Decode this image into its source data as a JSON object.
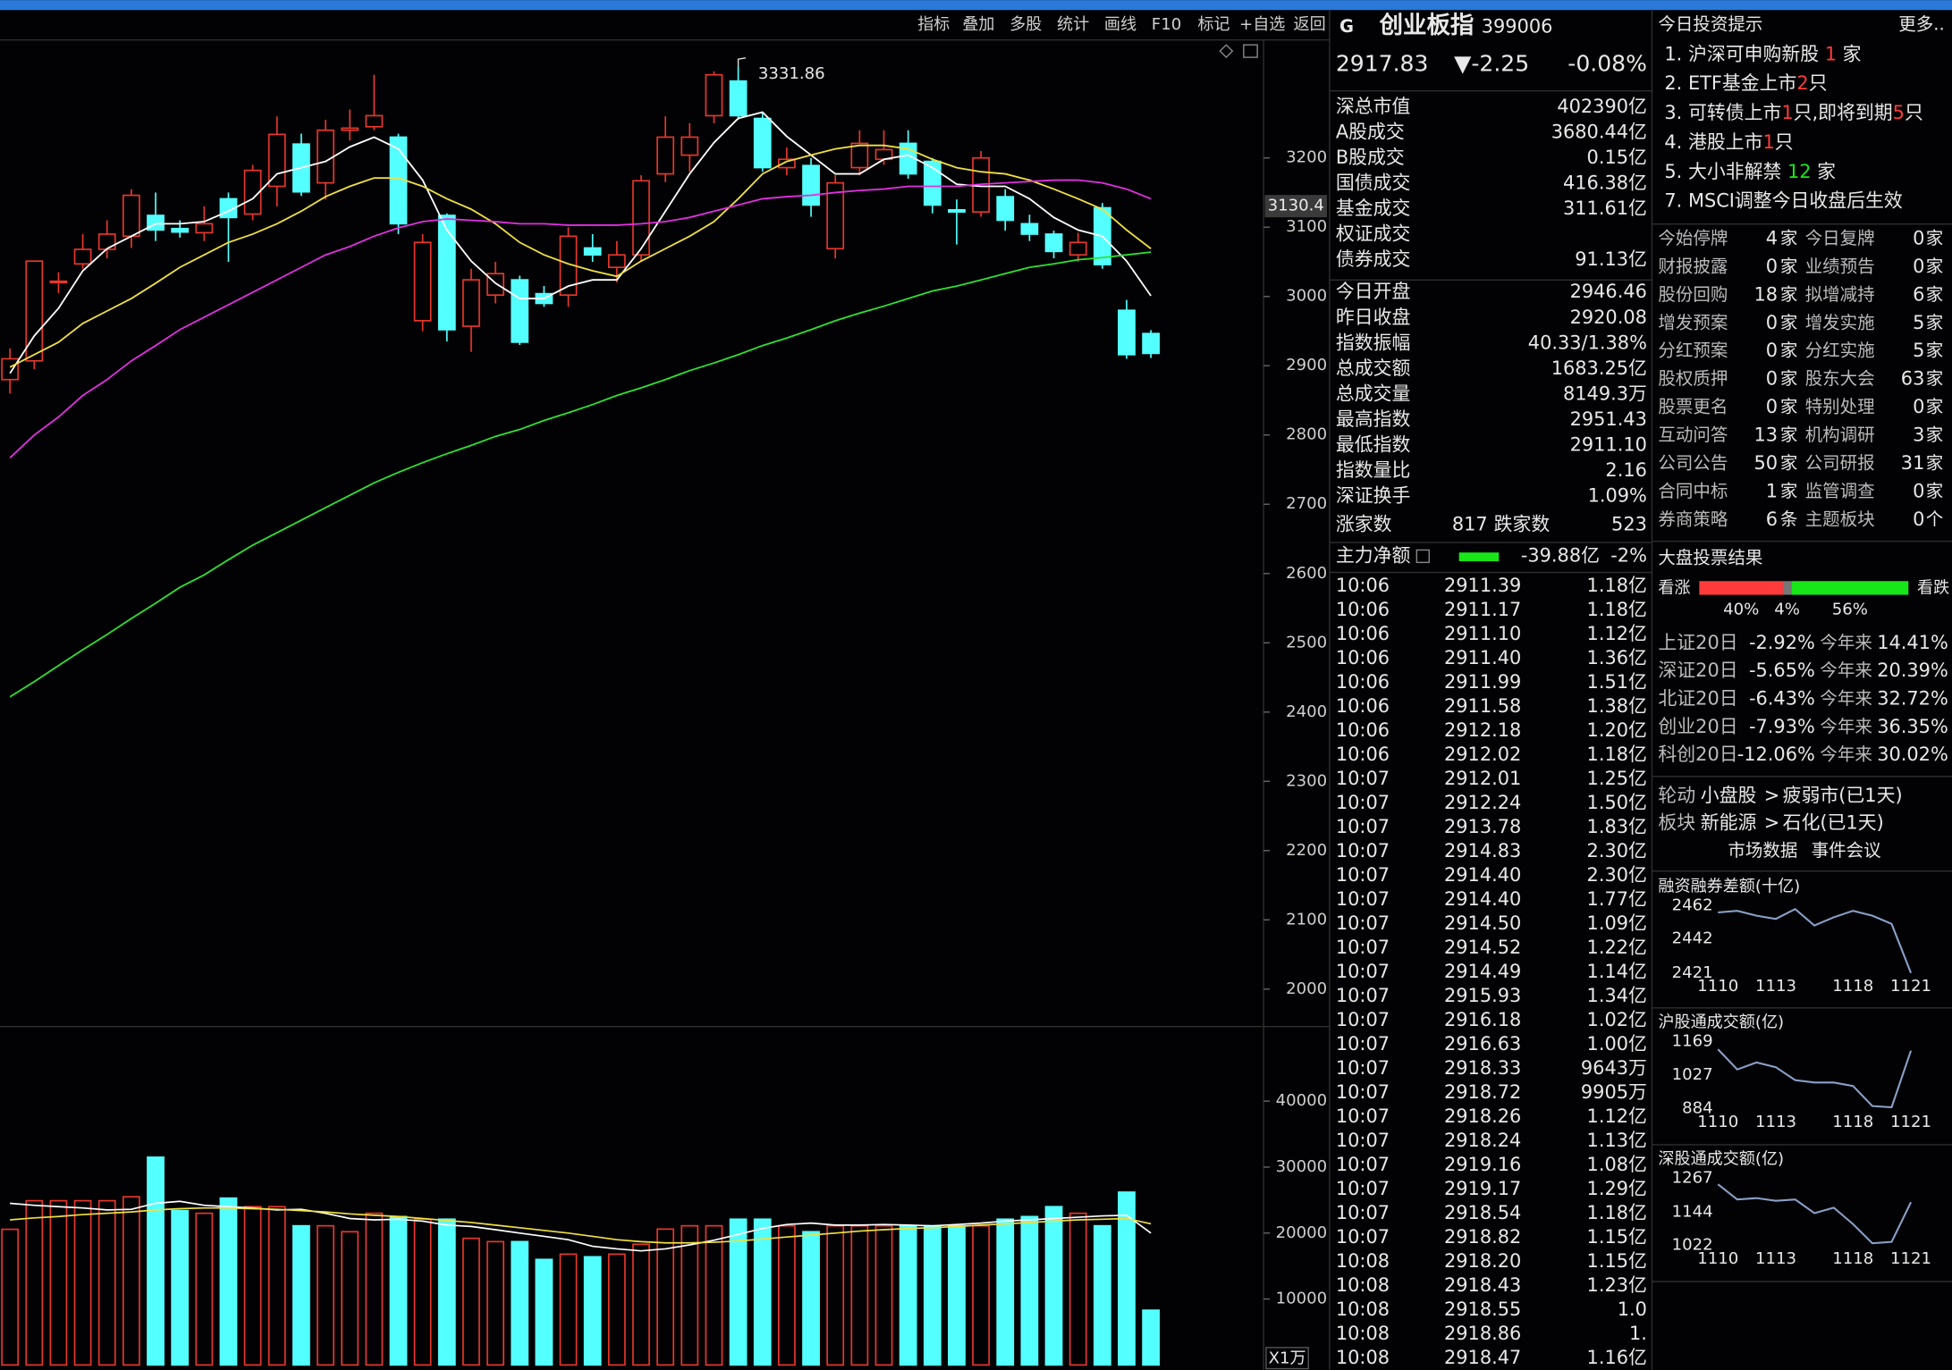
{
  "toolbar": [
    "指标",
    "叠加",
    "多股",
    "统计",
    "画线",
    "F10",
    "标记",
    "+自选",
    "返回"
  ],
  "chart_data": [
    {
      "type": "candlestick",
      "up_color": "#e8372b",
      "down_color": "#54ffff",
      "ylim": [
        1946,
        3374
      ],
      "yticks": [
        2000,
        2100,
        2200,
        2300,
        2400,
        2500,
        2600,
        2700,
        2800,
        2900,
        3000,
        3100,
        3200
      ],
      "marker": 3130.4,
      "open": [
        2880,
        2907,
        3020,
        3047,
        3068,
        3087,
        3117,
        3098,
        3092,
        3141,
        3119,
        3159,
        3220,
        3164,
        3240,
        3245,
        3230,
        2965,
        3117,
        2957,
        3002,
        3024,
        3004,
        3002,
        3070,
        3042,
        3060,
        3177,
        3204,
        3261,
        3311,
        3257,
        3186,
        3189,
        3069,
        3186,
        3198,
        3221,
        3195,
        3125,
        3122,
        3144,
        3105,
        3090,
        3060,
        3128,
        2980,
        2946.46
      ],
      "high": [
        2925,
        3051,
        3035,
        3090,
        3110,
        3155,
        3150,
        3110,
        3130,
        3150,
        3190,
        3260,
        3235,
        3255,
        3270,
        3320,
        3235,
        3090,
        3120,
        3040,
        3050,
        3030,
        3015,
        3100,
        3090,
        3080,
        3175,
        3260,
        3250,
        3325,
        3331.86,
        3265,
        3215,
        3200,
        3175,
        3240,
        3240,
        3240,
        3200,
        3140,
        3210,
        3155,
        3118,
        3095,
        3092,
        3135,
        2995,
        2951.43
      ],
      "low": [
        2860,
        2895,
        3005,
        3040,
        3055,
        3070,
        3080,
        3085,
        3080,
        3050,
        3110,
        3130,
        3145,
        3140,
        3225,
        3240,
        3090,
        2950,
        2935,
        2920,
        2990,
        2930,
        2985,
        2985,
        3050,
        3020,
        3050,
        3165,
        3180,
        3250,
        3255,
        3180,
        3175,
        3115,
        3055,
        3175,
        3190,
        3170,
        3120,
        3075,
        3115,
        3095,
        3080,
        3055,
        3050,
        3040,
        2910,
        2911.1
      ],
      "close": [
        2910,
        3051,
        3022,
        3068,
        3090,
        3146,
        3096,
        3093,
        3105,
        3114,
        3182,
        3234,
        3151,
        3240,
        3243,
        3261,
        3105,
        3078,
        2952,
        3024,
        3033,
        2934,
        2990,
        3087,
        3060,
        3060,
        3167,
        3230,
        3230,
        3320,
        3261,
        3186,
        3198,
        3132,
        3164,
        3221,
        3212,
        3177,
        3132,
        3122,
        3200,
        3110,
        3090,
        3065,
        3078,
        3046,
        2916,
        2917.83
      ],
      "lines": [
        {
          "color": "#ffffff",
          "values": [
            2889,
            2943,
            2983,
            3037,
            3069,
            3087,
            3105,
            3105,
            3108,
            3123,
            3141,
            3177,
            3186,
            3195,
            3216,
            3230,
            3213,
            3168,
            3096,
            3051,
            3019,
            2997,
            2997,
            3015,
            3024,
            3024,
            3069,
            3123,
            3177,
            3222,
            3257,
            3266,
            3231,
            3204,
            3177,
            3177,
            3198,
            3204,
            3186,
            3162,
            3159,
            3159,
            3141,
            3114,
            3096,
            3087,
            3051,
            3001
          ]
        },
        {
          "color": "#f0e040",
          "values": [
            2898,
            2916,
            2934,
            2961,
            2979,
            2997,
            3019,
            3042,
            3060,
            3078,
            3090,
            3105,
            3123,
            3144,
            3159,
            3171,
            3171,
            3159,
            3141,
            3126,
            3105,
            3078,
            3060,
            3047,
            3037,
            3029,
            3051,
            3069,
            3087,
            3108,
            3141,
            3177,
            3195,
            3204,
            3213,
            3218,
            3218,
            3213,
            3198,
            3186,
            3180,
            3177,
            3168,
            3155,
            3141,
            3126,
            3096,
            3069
          ]
        },
        {
          "color": "#e030e0",
          "values": [
            2767,
            2800,
            2826,
            2857,
            2880,
            2907,
            2929,
            2952,
            2970,
            2988,
            3006,
            3024,
            3042,
            3060,
            3072,
            3087,
            3099,
            3108,
            3112,
            3110,
            3108,
            3105,
            3105,
            3103,
            3103,
            3103,
            3105,
            3108,
            3114,
            3123,
            3132,
            3141,
            3144,
            3146,
            3150,
            3153,
            3155,
            3159,
            3159,
            3159,
            3162,
            3164,
            3166,
            3168,
            3168,
            3164,
            3155,
            3141
          ]
        },
        {
          "color": "#30e030",
          "values": [
            2422,
            2444,
            2467,
            2490,
            2512,
            2535,
            2557,
            2580,
            2598,
            2620,
            2641,
            2659,
            2677,
            2695,
            2713,
            2731,
            2746,
            2760,
            2773,
            2785,
            2798,
            2808,
            2821,
            2832,
            2844,
            2857,
            2868,
            2880,
            2893,
            2904,
            2916,
            2929,
            2940,
            2952,
            2965,
            2976,
            2986,
            2997,
            3008,
            3015,
            3024,
            3033,
            3042,
            3047,
            3053,
            3056,
            3060,
            3064
          ]
        }
      ]
    },
    {
      "type": "bar",
      "unit_label": "X1万",
      "ylim": [
        0,
        50750
      ],
      "yticks": [
        10000,
        20000,
        30000,
        40000
      ],
      "values": [
        20566,
        24900,
        24900,
        24900,
        24900,
        25500,
        31500,
        23400,
        23000,
        25300,
        24000,
        24000,
        21100,
        21100,
        20200,
        23000,
        22500,
        22100,
        22100,
        19200,
        18700,
        18700,
        16000,
        16800,
        16400,
        16800,
        18300,
        20600,
        21100,
        21100,
        22100,
        22100,
        21100,
        20200,
        21100,
        21100,
        21100,
        21100,
        21100,
        21100,
        21100,
        22100,
        22500,
        24000,
        23000,
        21100,
        26200,
        8300
      ],
      "lines": [
        {
          "color": "#ffffff",
          "values": [
            24500,
            24200,
            24000,
            23800,
            23500,
            23600,
            24500,
            24800,
            24200,
            24000,
            23800,
            23500,
            23600,
            23000,
            22200,
            22000,
            22100,
            21800,
            21200,
            21000,
            20500,
            20000,
            19500,
            19000,
            18000,
            17600,
            17300,
            17600,
            18200,
            18900,
            19800,
            20700,
            21300,
            21500,
            21200,
            21200,
            21300,
            21200,
            21100,
            21300,
            21500,
            21800,
            22000,
            22200,
            22400,
            22600,
            22700,
            20000
          ]
        },
        {
          "color": "#f0e040",
          "values": [
            22000,
            22300,
            22500,
            22800,
            23000,
            23200,
            23500,
            23700,
            23800,
            23800,
            23700,
            23600,
            23400,
            23200,
            22900,
            22700,
            22500,
            22200,
            21900,
            21600,
            21200,
            20800,
            20400,
            20000,
            19500,
            19000,
            18700,
            18500,
            18500,
            18600,
            18800,
            19100,
            19400,
            19700,
            20000,
            20300,
            20500,
            20700,
            20800,
            21000,
            21200,
            21400,
            21600,
            21800,
            22000,
            22100,
            22200,
            21400
          ]
        }
      ]
    },
    {
      "type": "line",
      "title": "融资融券差额(十亿)",
      "color": "#8aa0c8",
      "categories": [
        "1110",
        null,
        null,
        "1113",
        null,
        null,
        null,
        "1118",
        null,
        null,
        "1121"
      ],
      "values": [
        2458,
        2459,
        2456,
        2454,
        2460,
        2450,
        2455,
        2459,
        2456,
        2451,
        2421
      ],
      "ylim": [
        2421,
        2462
      ],
      "yticks": [
        2421,
        2442,
        2462
      ]
    },
    {
      "type": "line",
      "title": "沪股通成交额(亿)",
      "color": "#8aa0c8",
      "categories": [
        "1110",
        null,
        null,
        "1113",
        null,
        null,
        null,
        "1118",
        null,
        null,
        "1121"
      ],
      "values": [
        1136,
        1050,
        1080,
        1060,
        1005,
        995,
        995,
        980,
        895,
        890,
        1130
      ],
      "ylim": [
        884,
        1169
      ],
      "yticks": [
        884,
        1027,
        1169
      ]
    },
    {
      "type": "line",
      "title": "深股通成交额(亿)",
      "color": "#8aa0c8",
      "categories": [
        "1110",
        null,
        null,
        "1113",
        null,
        null,
        null,
        "1118",
        null,
        null,
        "1121"
      ],
      "values": [
        1245,
        1190,
        1195,
        1185,
        1190,
        1140,
        1160,
        1100,
        1030,
        1035,
        1180
      ],
      "ylim": [
        1022,
        1267
      ],
      "yticks": [
        1022,
        1144,
        1267
      ]
    }
  ],
  "header": {
    "flag": "G",
    "name": "创业板指",
    "code": "399006",
    "price": "2917.83",
    "change": "▼-2.25",
    "pct": "-0.08%"
  },
  "stats": [
    {
      "label": "深总市值",
      "value": "402390亿",
      "color": "#e8e8e8"
    },
    {
      "label": "A股成交",
      "value": "3680.44亿",
      "color": "#e8c41a"
    },
    {
      "label": "B股成交",
      "value": "0.15亿",
      "color": "#e8c41a"
    },
    {
      "label": "国债成交",
      "value": "416.38亿",
      "color": "#e8c41a"
    },
    {
      "label": "基金成交",
      "value": "311.61亿",
      "color": "#e8c41a"
    },
    {
      "label": "权证成交"
    },
    {
      "label": "债券成交",
      "value": "91.13亿",
      "color": "#e8c41a"
    },
    {
      "label": "今日开盘",
      "value": "2946.46",
      "color": "#ff3b3b"
    },
    {
      "label": "昨日收盘",
      "value": "2920.08",
      "color": "#e8e8e8"
    },
    {
      "label": "指数振幅",
      "value": "40.33/1.38%",
      "color": "#e8e8e8"
    },
    {
      "label": "总成交额",
      "value": "1683.25亿",
      "color": "#e8c41a"
    },
    {
      "label": "总成交量",
      "value": "8149.3万",
      "color": "#e8c41a"
    },
    {
      "label": "最高指数",
      "value": "2951.43",
      "color": "#ff3b3b"
    },
    {
      "label": "最低指数",
      "value": "2911.10",
      "color": "#19e619"
    },
    {
      "label": "指数量比",
      "value": "2.16",
      "color": "#ff3b3b"
    },
    {
      "label": "深证换手",
      "value": "1.09%",
      "color": "#e8e8e8"
    }
  ],
  "breadth": [
    "涨家数",
    "817",
    "跌家数",
    "523"
  ],
  "main_flow": [
    "主力净额",
    "-39.88亿",
    "-2%"
  ],
  "ticks": [
    [
      "10:06",
      "2911.39",
      "1.18亿"
    ],
    [
      "10:06",
      "2911.17",
      "1.18亿"
    ],
    [
      "10:06",
      "2911.10",
      "1.12亿"
    ],
    [
      "10:06",
      "2911.40",
      "1.36亿"
    ],
    [
      "10:06",
      "2911.99",
      "1.51亿"
    ],
    [
      "10:06",
      "2911.58",
      "1.38亿"
    ],
    [
      "10:06",
      "2912.18",
      "1.20亿"
    ],
    [
      "10:06",
      "2912.02",
      "1.18亿"
    ],
    [
      "10:07",
      "2912.01",
      "1.25亿"
    ],
    [
      "10:07",
      "2912.24",
      "1.50亿"
    ],
    [
      "10:07",
      "2913.78",
      "1.83亿"
    ],
    [
      "10:07",
      "2914.83",
      "2.30亿"
    ],
    [
      "10:07",
      "2914.40",
      "2.30亿"
    ],
    [
      "10:07",
      "2914.40",
      "1.77亿"
    ],
    [
      "10:07",
      "2914.50",
      "1.09亿"
    ],
    [
      "10:07",
      "2914.52",
      "1.22亿"
    ],
    [
      "10:07",
      "2914.49",
      "1.14亿"
    ],
    [
      "10:07",
      "2915.93",
      "1.34亿"
    ],
    [
      "10:07",
      "2916.18",
      "1.02亿"
    ],
    [
      "10:07",
      "2916.63",
      "1.00亿"
    ],
    [
      "10:07",
      "2918.33",
      "9643万"
    ],
    [
      "10:07",
      "2918.72",
      "9905万"
    ],
    [
      "10:07",
      "2918.26",
      "1.12亿"
    ],
    [
      "10:07",
      "2918.24",
      "1.13亿"
    ],
    [
      "10:07",
      "2919.16",
      "1.08亿"
    ],
    [
      "10:07",
      "2919.17",
      "1.29亿"
    ],
    [
      "10:07",
      "2918.54",
      "1.18亿"
    ],
    [
      "10:07",
      "2918.82",
      "1.15亿"
    ],
    [
      "10:08",
      "2918.20",
      "1.15亿"
    ],
    [
      "10:08",
      "2918.43",
      "1.23亿"
    ],
    [
      "10:08",
      "2918.55",
      "1.0"
    ],
    [
      "10:08",
      "2918.86",
      "1."
    ],
    [
      "10:08",
      "2918.47",
      "1.16亿"
    ]
  ],
  "tips": {
    "title": "今日投资提示",
    "more": "更多..",
    "items": [
      {
        "parts": [
          "1. 沪深可申购新股 ",
          "1",
          " 家"
        ],
        "color": "#ff3b3b"
      },
      {
        "parts": [
          "2. ETF基金上市",
          "2",
          "只"
        ],
        "color": "#ff3b3b"
      },
      {
        "parts": [
          "3. 可转债上市",
          "1",
          "只,即将到期",
          "5",
          "只"
        ],
        "color": "#ff3b3b"
      },
      {
        "parts": [
          "4. 港股上市",
          "1",
          "只"
        ],
        "color": "#ff3b3b"
      },
      {
        "parts": [
          "5. 大小非解禁 ",
          "12",
          " 家"
        ],
        "color": "#19e619"
      },
      {
        "parts": [
          "7. MSCI调整今日收盘后生效"
        ],
        "color": "#ff3b3b"
      }
    ]
  },
  "events": [
    [
      "今始停牌",
      "4",
      "家",
      "今日复牌",
      "0",
      "家"
    ],
    [
      "财报披露",
      "0",
      "家",
      "业绩预告",
      "0",
      "家"
    ],
    [
      "股份回购",
      "18",
      "家",
      "拟增减持",
      "6",
      "家"
    ],
    [
      "增发预案",
      "0",
      "家",
      "增发实施",
      "5",
      "家"
    ],
    [
      "分红预案",
      "0",
      "家",
      "分红实施",
      "5",
      "家"
    ],
    [
      "股权质押",
      "0",
      "家",
      "股东大会",
      "63",
      "家"
    ],
    [
      "股票更名",
      "0",
      "家",
      "特别处理",
      "0",
      "家"
    ],
    [
      "互动问答",
      "13",
      "家",
      "机构调研",
      "3",
      "家"
    ],
    [
      "公司公告",
      "50",
      "家",
      "公司研报",
      "31",
      "家"
    ],
    [
      "合同中标",
      "1",
      "家",
      "监管调查",
      "0",
      "家"
    ],
    [
      "券商策略",
      "6",
      "条",
      "主题板块",
      "0",
      "个"
    ]
  ],
  "vote": {
    "title": "大盘投票结果",
    "up_label": "看涨",
    "down_label": "看跌",
    "values": [
      40,
      4,
      56
    ],
    "value_labels": [
      "40%",
      "4%",
      "56%"
    ],
    "colors": [
      "#ff3b3b",
      "#777777",
      "#19e619"
    ]
  },
  "index_perf": [
    [
      "上证20日",
      "-2.92%",
      "今年来",
      "14.41%"
    ],
    [
      "深证20日",
      "-5.65%",
      "今年来",
      "20.39%"
    ],
    [
      "北证20日",
      "-6.43%",
      "今年来",
      "32.72%"
    ],
    [
      "创业20日",
      "-7.93%",
      "今年来",
      "36.35%"
    ],
    [
      "科创20日",
      "-12.06%",
      "今年来",
      "30.02%"
    ]
  ],
  "rotation": [
    [
      "轮动",
      "小盘股",
      ">",
      "疲弱市(已1天)"
    ],
    [
      "板块",
      "新能源",
      ">",
      "石化(已1天)"
    ]
  ],
  "links": [
    "市场数据",
    "事件会议"
  ]
}
